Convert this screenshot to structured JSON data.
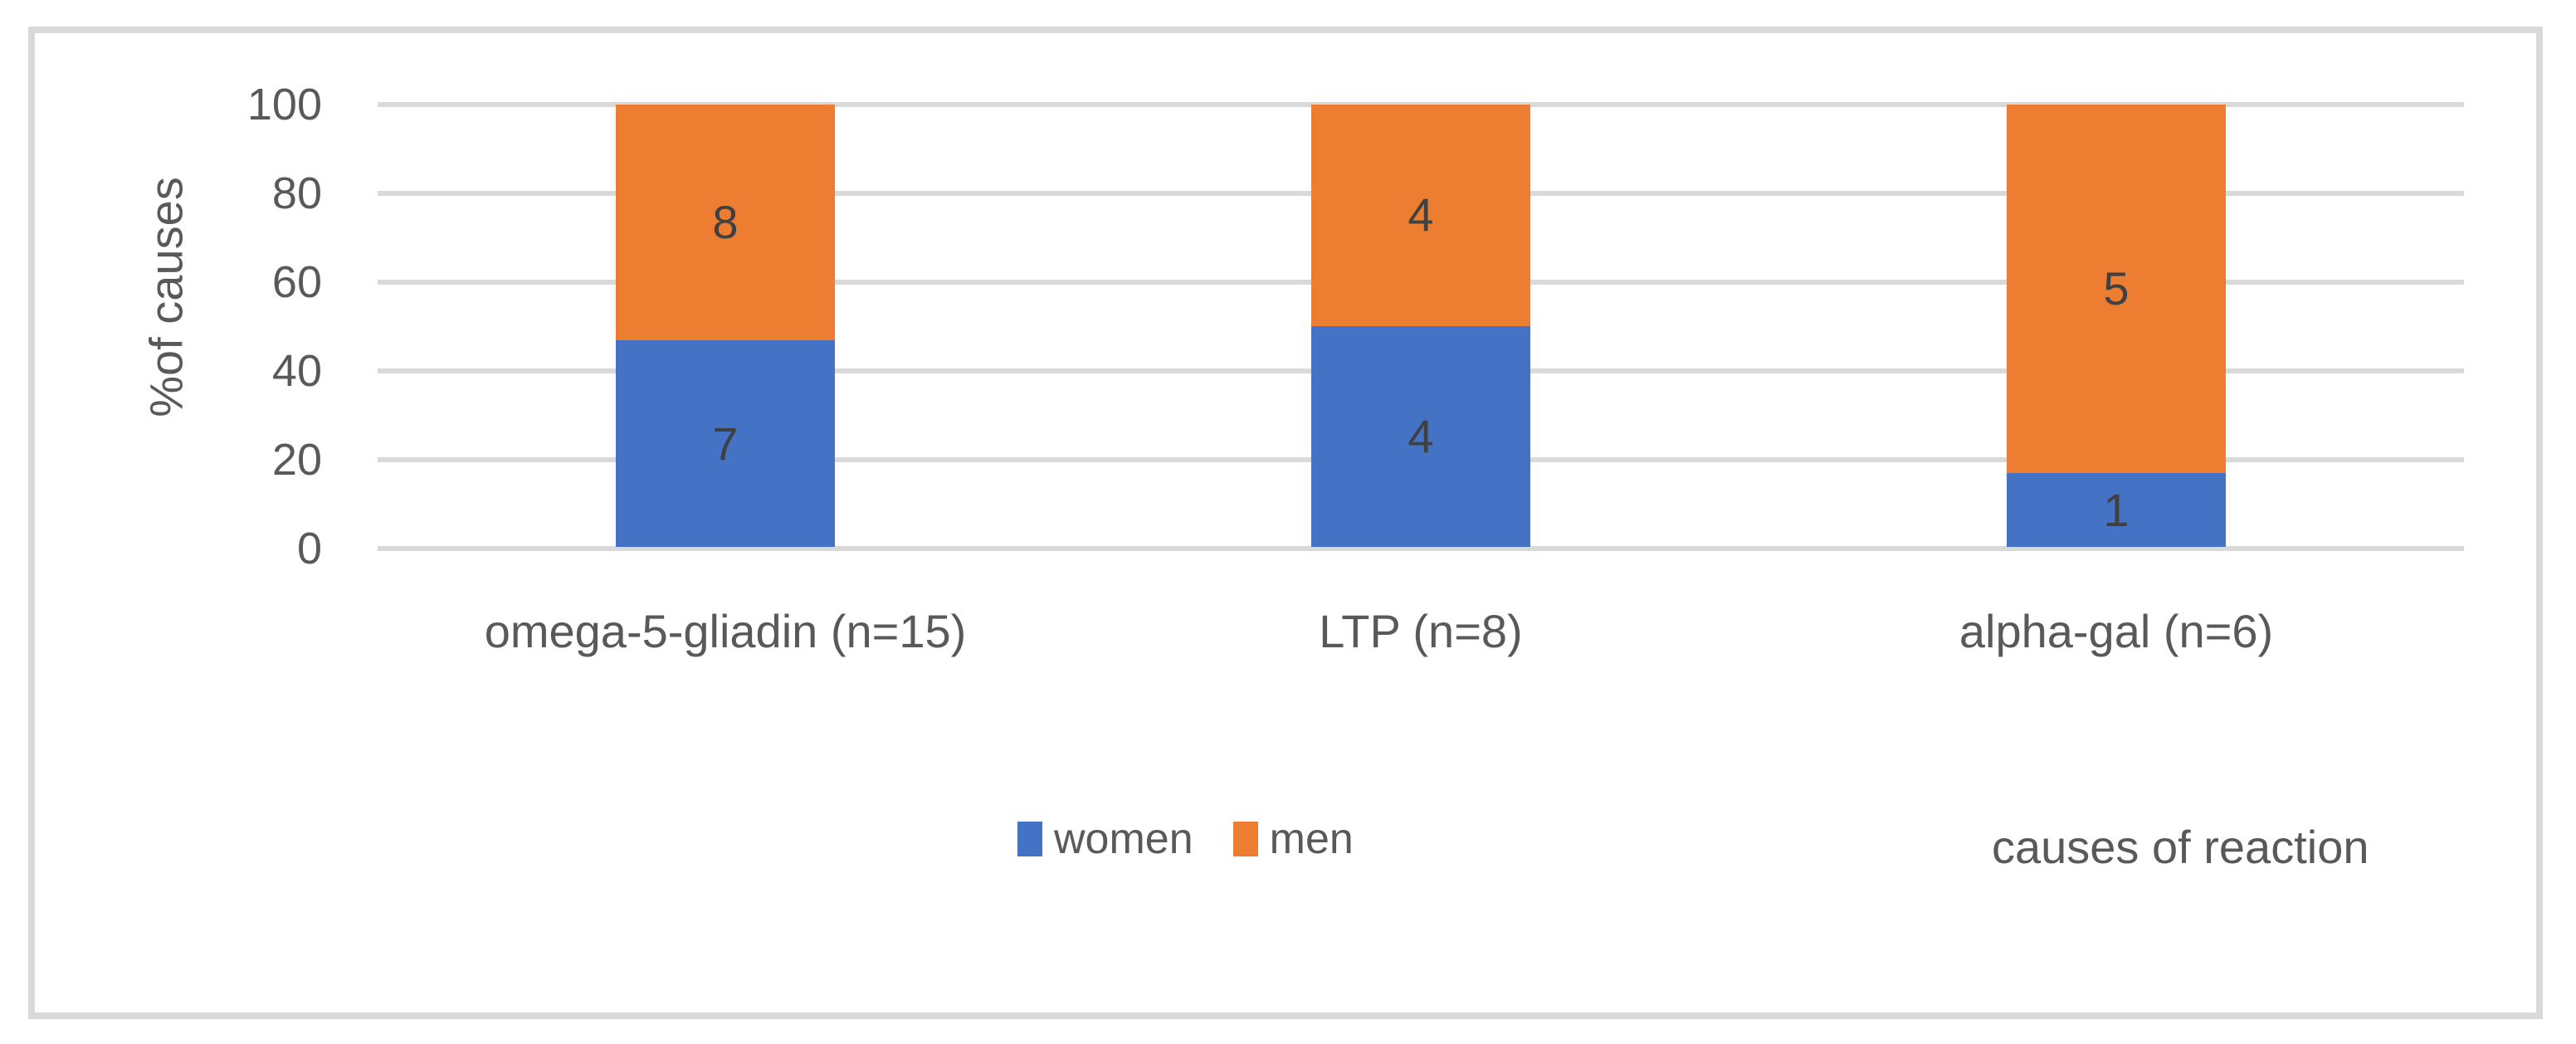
{
  "figure": {
    "background_color": "#FFFFFF",
    "border_color": "#D9D9D9"
  },
  "chart_data": {
    "type": "bar",
    "stacked": true,
    "percent_normalized": true,
    "title": "",
    "xlabel": "causes of reaction",
    "ylabel": "%of causes",
    "categories": [
      "omega-5-gliadin (n=15)",
      "LTP (n=8)",
      "alpha-gal (n=6)"
    ],
    "series": [
      {
        "name": "women",
        "color": "#4472C4",
        "values": [
          7,
          4,
          1
        ]
      },
      {
        "name": "men",
        "color": "#ED7D31",
        "values": [
          8,
          4,
          5
        ]
      }
    ],
    "category_totals": [
      15,
      8,
      6
    ],
    "segment_percents": {
      "women": [
        46.7,
        50.0,
        16.7
      ],
      "men": [
        53.3,
        50.0,
        83.3
      ]
    },
    "data_labels_shown": [
      [
        "7",
        "4",
        "1"
      ],
      [
        "8",
        "4",
        "5"
      ]
    ],
    "ylim": [
      0,
      100
    ],
    "y_ticks": [
      0,
      20,
      40,
      60,
      80,
      100
    ],
    "grid": true,
    "gridline_color": "#D9D9D9",
    "axis_text_color": "#595959",
    "data_label_color": "#404040",
    "legend_position": "bottom-center",
    "legend_entries": [
      "women",
      "men"
    ]
  }
}
